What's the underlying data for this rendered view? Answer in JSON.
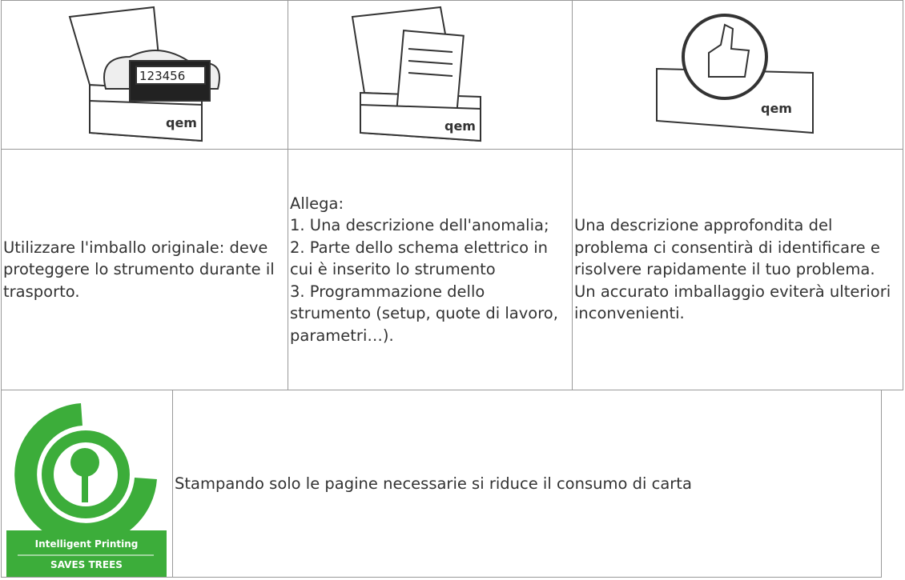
{
  "images": [
    {
      "label": "qem",
      "display": "123456"
    },
    {
      "label": "qem"
    },
    {
      "label": "qem"
    }
  ],
  "cells": [
    [
      "Utilizzare l'imballo originale: deve proteggere lo strumento durante il trasporto."
    ],
    [
      "Allega:",
      "1. Una descrizione dell'anomalia;",
      "2. Parte dello schema elettrico in cui è inserito lo strumento",
      "3. Programmazione dello strumento (setup, quote di lavoro, parametri…)."
    ],
    [
      "Una descrizione approfondita del problema ci consentirà di identificare e risolvere rapidamente il tuo problema.",
      "Un accurato imballaggio eviterà ulteriori inconvenienti."
    ]
  ],
  "banner": {
    "badge_top": "Intelligent Printing",
    "badge_bottom": "SAVES TREES",
    "text": "Stampando solo le pagine necessarie si riduce il consumo di carta"
  }
}
